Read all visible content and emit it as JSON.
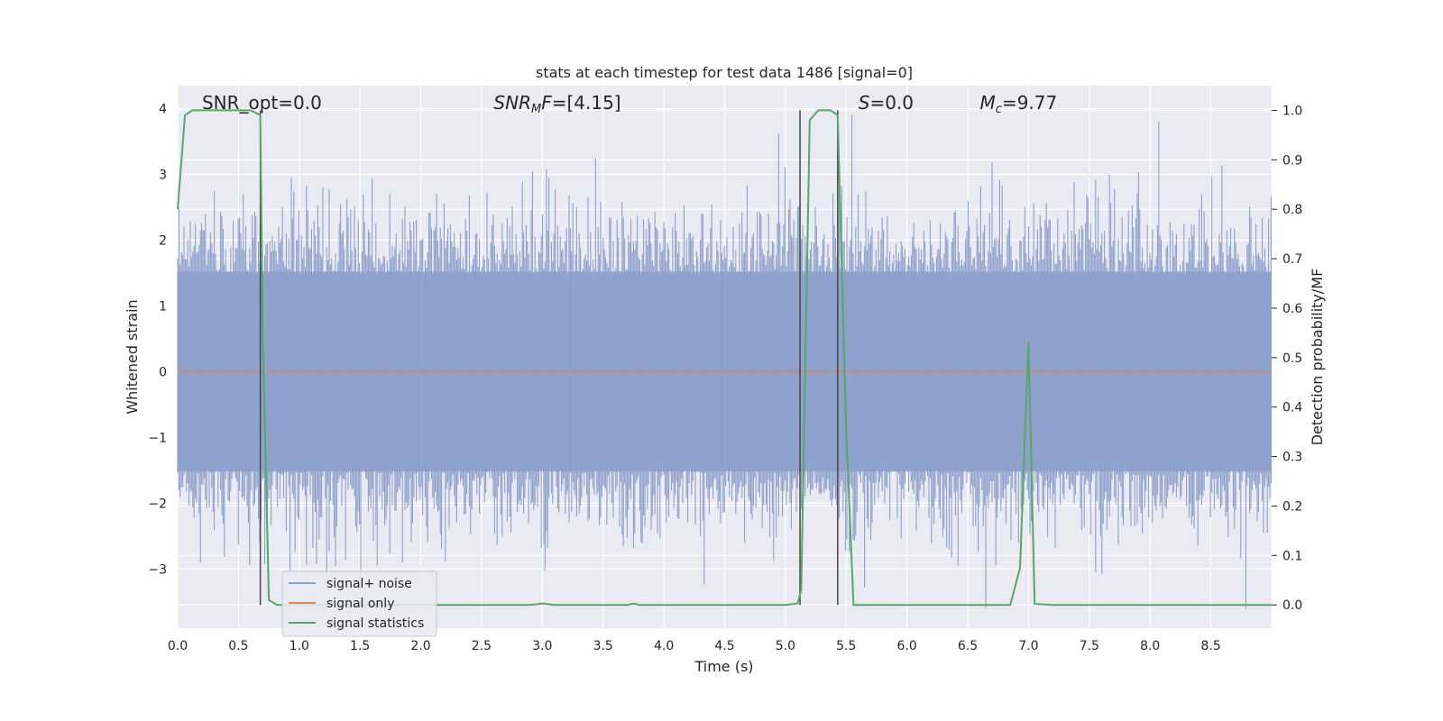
{
  "chart_data": {
    "type": "line",
    "title": "stats at each timestep for test data 1486 [signal=0]",
    "xlabel": "Time (s)",
    "ylabel": "Whitened strain",
    "ylabel_right": "Detection probability/MF",
    "xlim": [
      0.0,
      9.0
    ],
    "ylim": [
      -3.9,
      4.35
    ],
    "ylim_right": [
      -0.047,
      1.05
    ],
    "x_ticks": [
      "0.0",
      "0.5",
      "1.0",
      "1.5",
      "2.0",
      "2.5",
      "3.0",
      "3.5",
      "4.0",
      "4.5",
      "5.0",
      "5.5",
      "6.0",
      "6.5",
      "7.0",
      "7.5",
      "8.0",
      "8.5"
    ],
    "y_ticks": [
      "−3",
      "−2",
      "−1",
      "0",
      "1",
      "2",
      "3",
      "4"
    ],
    "y_ticks_right": [
      "0.0",
      "0.1",
      "0.2",
      "0.3",
      "0.4",
      "0.5",
      "0.6",
      "0.7",
      "0.8",
      "0.9",
      "1.0"
    ],
    "grid": true,
    "legend_position": "bottom-left",
    "annotations": [
      {
        "id": "snr-opt",
        "text": "SNR_opt=0.0",
        "x": 0.2
      },
      {
        "id": "snr-mf",
        "text": "SNR_MF=[4.15]",
        "x": 2.6
      },
      {
        "id": "s-val",
        "text": "S=0.0",
        "x": 5.6
      },
      {
        "id": "mc-val",
        "text": "M_c=9.77",
        "x": 6.6
      }
    ],
    "vlines": [
      0.68,
      5.12,
      5.43
    ],
    "series": [
      {
        "name": "signal+ noise",
        "color": "#8da0cb",
        "style": "noise band",
        "amplitude_typical": 1.6,
        "amplitude_peak": 4.0,
        "axis": "left"
      },
      {
        "name": "signal only",
        "color": "#dd8452",
        "x": [
          0.0,
          9.0
        ],
        "y": [
          0.0,
          0.0
        ],
        "axis": "left"
      },
      {
        "name": "signal statistics",
        "color": "#55a868",
        "axis": "right",
        "x": [
          0.0,
          0.06,
          0.12,
          0.2,
          0.4,
          0.6,
          0.68,
          0.7,
          0.75,
          0.82,
          1.0,
          2.0,
          2.9,
          3.0,
          3.1,
          3.7,
          3.75,
          3.8,
          4.0,
          5.0,
          5.1,
          5.13,
          5.2,
          5.27,
          5.37,
          5.43,
          5.5,
          5.56,
          6.0,
          6.85,
          6.93,
          7.0,
          7.05,
          7.2,
          8.0,
          9.0
        ],
        "y": [
          0.8,
          0.99,
          1.0,
          1.0,
          1.0,
          1.0,
          0.99,
          0.55,
          0.01,
          0.0,
          0.0,
          0.0,
          0.0,
          0.003,
          0.0,
          0.0,
          0.003,
          0.0,
          0.0,
          0.0,
          0.003,
          0.03,
          0.98,
          1.0,
          1.0,
          0.99,
          0.35,
          0.0,
          0.0,
          0.0,
          0.075,
          0.53,
          0.002,
          0.0,
          0.0,
          0.0
        ]
      }
    ]
  }
}
